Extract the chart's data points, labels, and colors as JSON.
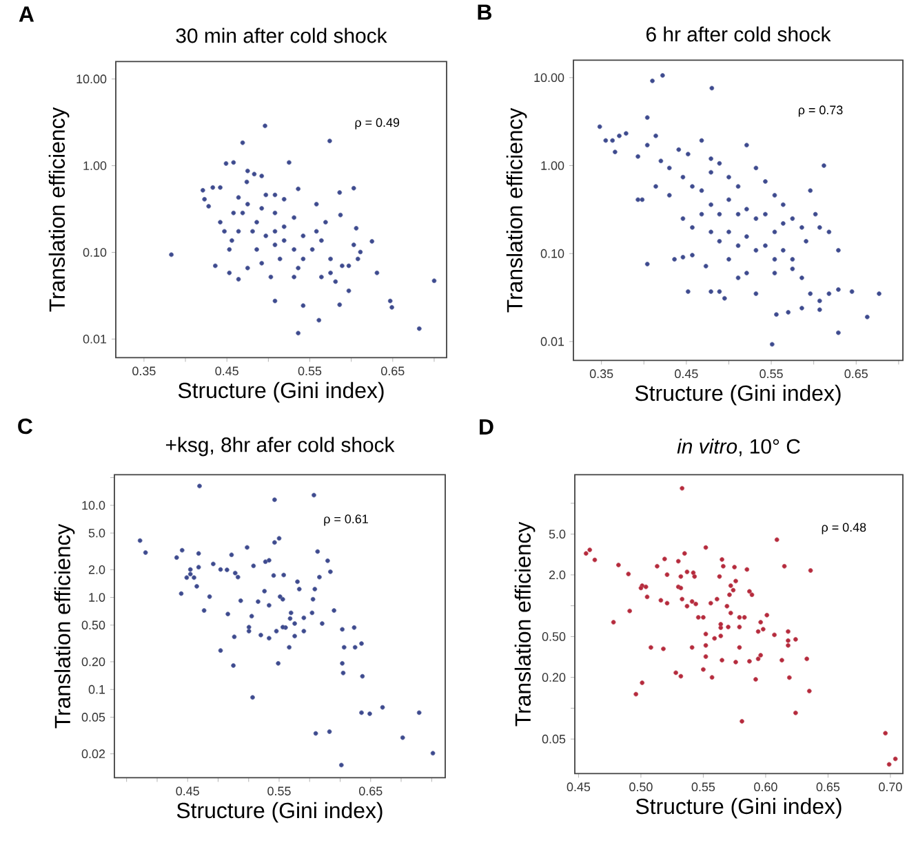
{
  "chart_data": [
    {
      "type": "scatter",
      "title": "30 min after cold shock",
      "xlabel": "Structure (Gini index)",
      "ylabel": "Translation efficiency",
      "annotations": [
        "A",
        "ρ = 0.49"
      ],
      "log": "y",
      "marker": "circle",
      "color": "#3d4a8e",
      "xlim": [
        0.316,
        0.715
      ],
      "ylim": [
        0.0061,
        15.9
      ],
      "xticks": [
        0.35,
        {
          "value": 0.4,
          "label": null
        },
        0.45,
        {
          "value": 0.5,
          "label": null
        },
        0.55,
        {
          "value": 0.6,
          "label": null
        },
        0.65,
        {
          "value": 0.7,
          "label": null
        }
      ],
      "yticks": [
        {
          "value": 0.01,
          "label": "0.01"
        },
        {
          "value": 0.1,
          "label": "0.10"
        },
        {
          "value": 1,
          "label": "1.00"
        },
        {
          "value": 10,
          "label": "10.00"
        }
      ],
      "x": [
        0.383,
        0.496,
        0.469,
        0.574,
        0.449,
        0.458,
        0.525,
        0.475,
        0.421,
        0.433,
        0.442,
        0.423,
        0.428,
        0.464,
        0.474,
        0.483,
        0.492,
        0.497,
        0.508,
        0.536,
        0.558,
        0.586,
        0.603,
        0.587,
        0.606,
        0.625,
        0.611,
        0.603,
        0.7,
        0.682,
        0.647,
        0.649,
        0.586,
        0.561,
        0.536,
        0.542,
        0.508,
        0.503,
        0.564,
        0.575,
        0.597,
        0.608,
        0.631,
        0.469,
        0.486,
        0.508,
        0.519,
        0.531,
        0.542,
        0.553,
        0.564,
        0.575,
        0.486,
        0.453,
        0.456,
        0.464,
        0.442,
        0.475,
        0.492,
        0.514,
        0.531,
        0.536,
        0.475,
        0.492,
        0.508,
        0.519,
        0.453,
        0.464,
        0.436,
        0.597,
        0.581,
        0.589,
        0.569,
        0.558,
        0.531,
        0.519,
        0.447,
        0.458,
        0.508,
        0.542,
        0.497,
        0.481
      ],
      "values": [
        0.094,
        2.88,
        1.84,
        1.93,
        1.06,
        1.09,
        1.09,
        0.87,
        0.52,
        0.56,
        0.56,
        0.41,
        0.34,
        0.43,
        0.65,
        0.8,
        0.76,
        0.46,
        0.46,
        0.54,
        0.36,
        0.49,
        0.55,
        0.27,
        0.19,
        0.134,
        0.101,
        0.122,
        0.047,
        0.0132,
        0.0275,
        0.0232,
        0.0249,
        0.0165,
        0.0117,
        0.0243,
        0.0275,
        0.052,
        0.052,
        0.058,
        0.036,
        0.084,
        0.058,
        0.285,
        0.223,
        0.175,
        0.137,
        0.252,
        0.155,
        0.108,
        0.137,
        0.084,
        0.108,
        0.108,
        0.137,
        0.175,
        0.223,
        0.066,
        0.075,
        0.084,
        0.052,
        0.066,
        0.36,
        0.322,
        0.285,
        0.198,
        0.058,
        0.049,
        0.07,
        0.07,
        0.046,
        0.07,
        0.223,
        0.175,
        0.108,
        0.41,
        0.175,
        0.285,
        0.122,
        0.084,
        0.155,
        0.175
      ]
    },
    {
      "type": "scatter",
      "title": "6 hr after cold shock",
      "xlabel": "Structure (Gini index)",
      "ylabel": "Translation efficiency",
      "annotations": [
        "B",
        "ρ = 0.73"
      ],
      "log": "y",
      "marker": "circle",
      "color": "#3d4a8e",
      "xlim": [
        0.317,
        0.705
      ],
      "ylim": [
        0.0061,
        15.8
      ],
      "xticks": [
        0.35,
        {
          "value": 0.4,
          "label": null
        },
        0.45,
        {
          "value": 0.5,
          "label": null
        },
        0.55,
        {
          "value": 0.6,
          "label": null
        },
        0.65,
        {
          "value": 0.7,
          "label": null
        }
      ],
      "yticks": [
        {
          "value": 0.01,
          "label": "0.01"
        },
        {
          "value": 0.1,
          "label": "0.10"
        },
        {
          "value": 1,
          "label": "1.00"
        },
        {
          "value": 10,
          "label": "10.00"
        }
      ],
      "x": [
        0.348,
        0.355,
        0.363,
        0.366,
        0.371,
        0.379,
        0.393,
        0.398,
        0.393,
        0.404,
        0.41,
        0.422,
        0.48,
        0.404,
        0.414,
        0.42,
        0.43,
        0.441,
        0.452,
        0.468,
        0.479,
        0.414,
        0.43,
        0.446,
        0.457,
        0.468,
        0.479,
        0.489,
        0.5,
        0.511,
        0.521,
        0.532,
        0.543,
        0.554,
        0.564,
        0.479,
        0.489,
        0.5,
        0.511,
        0.521,
        0.532,
        0.543,
        0.554,
        0.564,
        0.575,
        0.586,
        0.596,
        0.602,
        0.612,
        0.618,
        0.446,
        0.457,
        0.468,
        0.479,
        0.489,
        0.5,
        0.511,
        0.521,
        0.532,
        0.543,
        0.554,
        0.564,
        0.575,
        0.591,
        0.607,
        0.629,
        0.457,
        0.446,
        0.473,
        0.5,
        0.521,
        0.554,
        0.575,
        0.586,
        0.596,
        0.607,
        0.618,
        0.629,
        0.645,
        0.677,
        0.663,
        0.629,
        0.607,
        0.586,
        0.57,
        0.556,
        0.551,
        0.532,
        0.489,
        0.495,
        0.479,
        0.452,
        0.511,
        0.436,
        0.404
      ],
      "values": [
        2.77,
        1.93,
        1.93,
        1.43,
        2.18,
        2.32,
        0.41,
        0.41,
        1.27,
        3.52,
        9.2,
        10.6,
        7.6,
        1.71,
        2.18,
        1.13,
        0.94,
        1.52,
        1.35,
        1.93,
        1.2,
        0.58,
        0.46,
        0.74,
        0.58,
        0.52,
        0.84,
        1.06,
        0.74,
        0.58,
        1.71,
        0.94,
        0.66,
        0.46,
        0.36,
        0.36,
        0.28,
        0.41,
        0.28,
        0.32,
        0.25,
        0.28,
        0.176,
        0.22,
        0.25,
        0.198,
        0.52,
        0.28,
        1.0,
        0.176,
        0.25,
        0.198,
        0.28,
        0.176,
        0.138,
        0.176,
        0.123,
        0.156,
        0.109,
        0.123,
        0.086,
        0.109,
        0.086,
        0.138,
        0.198,
        0.109,
        0.096,
        0.091,
        0.072,
        0.086,
        0.06,
        0.06,
        0.067,
        0.053,
        0.035,
        0.029,
        0.035,
        0.039,
        0.037,
        0.035,
        0.019,
        0.0126,
        0.023,
        0.024,
        0.0215,
        0.0203,
        0.0093,
        0.035,
        0.037,
        0.031,
        0.037,
        0.037,
        0.053,
        0.086,
        0.076
      ]
    },
    {
      "type": "scatter",
      "title": "+ksg, 8hr afer cold shock",
      "xlabel": "Structure (Gini index)",
      "ylabel": "Translation efficiency",
      "annotations": [
        "C",
        "ρ = 0.61"
      ],
      "log": "y",
      "marker": "circle",
      "color": "#3d4a8e",
      "xlim": [
        0.37,
        0.7315
      ],
      "ylim": [
        0.011,
        21.5
      ],
      "xticks": [
        {
          "value": 0.3833,
          "label": null
        },
        {
          "value": 0.4167,
          "label": null
        },
        0.45,
        {
          "value": 0.4833,
          "label": null
        },
        {
          "value": 0.5167,
          "label": null
        },
        0.55,
        {
          "value": 0.5833,
          "label": null
        },
        {
          "value": 0.6167,
          "label": null
        },
        0.65,
        {
          "value": 0.6833,
          "label": null
        },
        {
          "value": 0.7167,
          "label": null
        }
      ],
      "yticks": [
        {
          "value": 0.02,
          "label": "0.02"
        },
        {
          "value": 0.05,
          "label": "0.05"
        },
        {
          "value": 0.1,
          "label": "0.1"
        },
        {
          "value": 0.2,
          "label": "0.20"
        },
        {
          "value": 0.5,
          "label": "0.50"
        },
        {
          "value": 1,
          "label": "1.0"
        },
        {
          "value": 2,
          "label": "2.0"
        },
        {
          "value": 5,
          "label": "5.0"
        },
        {
          "value": 10,
          "label": "10.0"
        },
        {
          "value": 20,
          "label": null
        }
      ],
      "x": [
        0.463,
        0.398,
        0.404,
        0.438,
        0.444,
        0.462,
        0.462,
        0.453,
        0.453,
        0.457,
        0.46,
        0.449,
        0.443,
        0.468,
        0.474,
        0.478,
        0.486,
        0.493,
        0.498,
        0.502,
        0.505,
        0.508,
        0.494,
        0.486,
        0.501,
        0.5,
        0.515,
        0.522,
        0.517,
        0.52,
        0.527,
        0.535,
        0.539,
        0.544,
        0.545,
        0.545,
        0.55,
        0.551,
        0.554,
        0.534,
        0.539,
        0.547,
        0.549,
        0.539,
        0.555,
        0.557,
        0.561,
        0.562,
        0.563,
        0.567,
        0.57,
        0.572,
        0.577,
        0.577,
        0.586,
        0.587,
        0.588,
        0.589,
        0.592,
        0.594,
        0.597,
        0.603,
        0.606,
        0.61,
        0.619,
        0.62,
        0.621,
        0.619,
        0.632,
        0.633,
        0.64,
        0.641,
        0.64,
        0.649,
        0.663,
        0.703,
        0.685,
        0.718,
        0.618,
        0.605,
        0.59,
        0.521,
        0.517,
        0.53,
        0.567,
        0.554
      ],
      "values": [
        16.2,
        4.14,
        3.07,
        2.71,
        3.25,
        3.0,
        2.13,
        2.01,
        1.79,
        1.64,
        1.32,
        1.64,
        1.1,
        0.72,
        1.02,
        2.31,
        2.01,
        1.99,
        2.9,
        1.84,
        1.66,
        0.92,
        0.66,
        0.265,
        0.373,
        0.182,
        3.49,
        2.2,
        0.475,
        0.625,
        0.9,
        2.44,
        2.53,
        1.73,
        3.95,
        11.5,
        4.38,
        1.02,
        0.955,
        1.17,
        0.82,
        0.43,
        0.192,
        0.36,
        1.75,
        0.47,
        0.287,
        0.59,
        0.68,
        0.52,
        1.48,
        1.23,
        0.43,
        0.6,
        0.68,
        0.955,
        12.9,
        1.23,
        3.15,
        1.66,
        0.52,
        2.5,
        1.9,
        0.72,
        0.192,
        0.151,
        0.287,
        0.45,
        0.47,
        0.287,
        0.315,
        0.139,
        0.056,
        0.0545,
        0.064,
        0.056,
        0.03,
        0.0203,
        0.0151,
        0.0348,
        0.0333,
        0.082,
        0.43,
        0.39,
        0.38,
        0.475
      ]
    },
    {
      "type": "scatter",
      "title": "*in vitro*, 10° C",
      "xlabel": "Structure (Gini index)",
      "ylabel": "Translation efficiency",
      "annotations": [
        "D",
        "ρ = 0.48"
      ],
      "log": "y",
      "marker": "circle",
      "color": "#b52a3c",
      "xlim": [
        0.447,
        0.71
      ],
      "ylim": [
        0.023,
        19
      ],
      "xticks": [
        {
          "value": 0.45,
          "label": "0.45"
        },
        {
          "value": 0.5,
          "label": "0.50"
        },
        0.55,
        {
          "value": 0.6,
          "label": "0.60"
        },
        0.65,
        {
          "value": 0.7,
          "label": "0.70"
        }
      ],
      "yticks": [
        {
          "value": 0.05,
          "label": "0.05"
        },
        {
          "value": 0.1,
          "label": null
        },
        {
          "value": 0.2,
          "label": "0.20"
        },
        {
          "value": 0.5,
          "label": "0.50"
        },
        {
          "value": 1,
          "label": null
        },
        {
          "value": 2,
          "label": "2.0"
        },
        {
          "value": 5,
          "label": "5.0"
        },
        {
          "value": 10,
          "label": null
        }
      ],
      "x": [
        0.533,
        0.456,
        0.459,
        0.463,
        0.482,
        0.49,
        0.501,
        0.504,
        0.5,
        0.505,
        0.491,
        0.478,
        0.513,
        0.519,
        0.521,
        0.53,
        0.532,
        0.535,
        0.537,
        0.542,
        0.543,
        0.552,
        0.541,
        0.516,
        0.521,
        0.53,
        0.532,
        0.533,
        0.537,
        0.544,
        0.546,
        0.55,
        0.556,
        0.561,
        0.563,
        0.565,
        0.566,
        0.572,
        0.574,
        0.576,
        0.571,
        0.587,
        0.589,
        0.585,
        0.575,
        0.569,
        0.572,
        0.579,
        0.583,
        0.596,
        0.598,
        0.601,
        0.594,
        0.609,
        0.615,
        0.636,
        0.607,
        0.618,
        0.618,
        0.618,
        0.624,
        0.613,
        0.633,
        0.635,
        0.624,
        0.619,
        0.594,
        0.596,
        0.592,
        0.587,
        0.579,
        0.576,
        0.564,
        0.564,
        0.552,
        0.552,
        0.552,
        0.55,
        0.557,
        0.565,
        0.541,
        0.532,
        0.528,
        0.518,
        0.508,
        0.501,
        0.496,
        0.581,
        0.696,
        0.699,
        0.704,
        0.559,
        0.57,
        0.579,
        0.564
      ],
      "values": [
        14.0,
        3.24,
        3.51,
        2.8,
        2.5,
        2.04,
        1.57,
        1.53,
        1.49,
        1.22,
        0.89,
        0.69,
        2.43,
        2.86,
        2.01,
        2.72,
        1.93,
        3.24,
        2.14,
        2.1,
        1.93,
        3.7,
        1.1,
        1.13,
        1.06,
        1.53,
        1.49,
        1.16,
        0.99,
        1.04,
        0.77,
        0.77,
        1.06,
        1.16,
        1.93,
        2.83,
        2.43,
        1.57,
        1.42,
        1.74,
        1.28,
        1.38,
        1.28,
        2.26,
        2.38,
        0.99,
        0.85,
        0.77,
        0.77,
        0.69,
        0.59,
        0.81,
        0.56,
        4.41,
        2.43,
        2.21,
        0.52,
        0.56,
        0.457,
        0.41,
        0.47,
        0.294,
        0.303,
        0.147,
        0.09,
        0.199,
        0.303,
        0.329,
        0.191,
        0.287,
        0.392,
        0.282,
        0.507,
        0.61,
        0.53,
        0.41,
        0.319,
        0.239,
        0.2,
        0.294,
        0.392,
        0.205,
        0.222,
        0.38,
        0.392,
        0.177,
        0.137,
        0.0745,
        0.057,
        0.0283,
        0.032,
        0.48,
        0.62,
        0.62,
        0.66
      ]
    }
  ]
}
